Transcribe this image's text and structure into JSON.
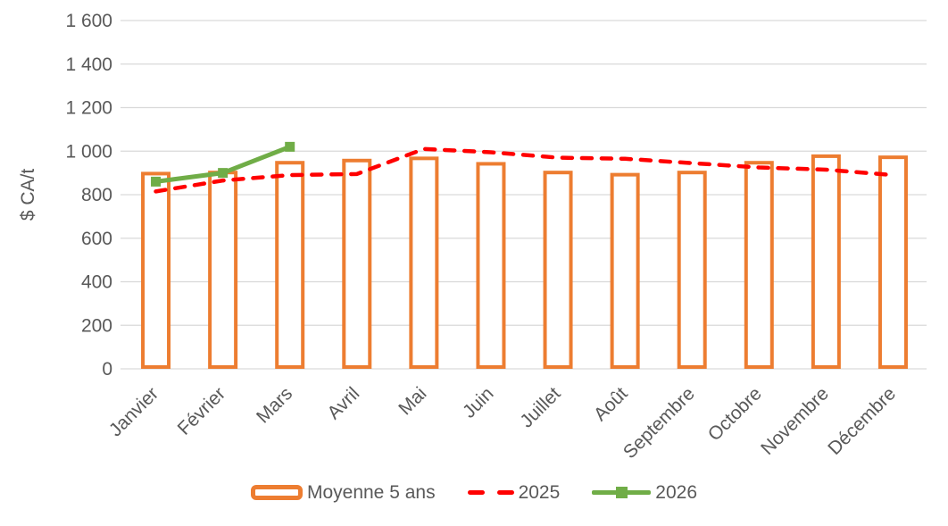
{
  "chart_data": {
    "type": "combo",
    "categories": [
      "Janvier",
      "Février",
      "Mars",
      "Avril",
      "Mai",
      "Juin",
      "Juillet",
      "Août",
      "Septembre",
      "Octobre",
      "Novembre",
      "Décembre"
    ],
    "series": [
      {
        "name": "Moyenne 5 ans",
        "type": "bar",
        "color": "#ED7D31",
        "fill": "#FFFFFF",
        "values": [
          905,
          910,
          955,
          965,
          975,
          950,
          910,
          900,
          910,
          955,
          985,
          980
        ]
      },
      {
        "name": "2025",
        "type": "line",
        "style": "dashed",
        "color": "#FF0000",
        "values": [
          815,
          865,
          890,
          895,
          1010,
          995,
          970,
          965,
          945,
          925,
          915,
          890
        ]
      },
      {
        "name": "2026",
        "type": "line",
        "style": "solid-square-markers",
        "color": "#70AD47",
        "values": [
          860,
          900,
          1020,
          null,
          null,
          null,
          null,
          null,
          null,
          null,
          null,
          null
        ]
      }
    ],
    "title": "",
    "xlabel": "",
    "ylabel": "$ CA/t",
    "ylim": [
      0,
      1600
    ],
    "ytick_step": 200,
    "ytick_labels": [
      "0",
      "200",
      "400",
      "600",
      "800",
      "1 000",
      "1 200",
      "1 400",
      "1 600"
    ],
    "grid": true,
    "legend_position": "bottom",
    "text_color": "#595959",
    "grid_color": "#D9D9D9"
  }
}
